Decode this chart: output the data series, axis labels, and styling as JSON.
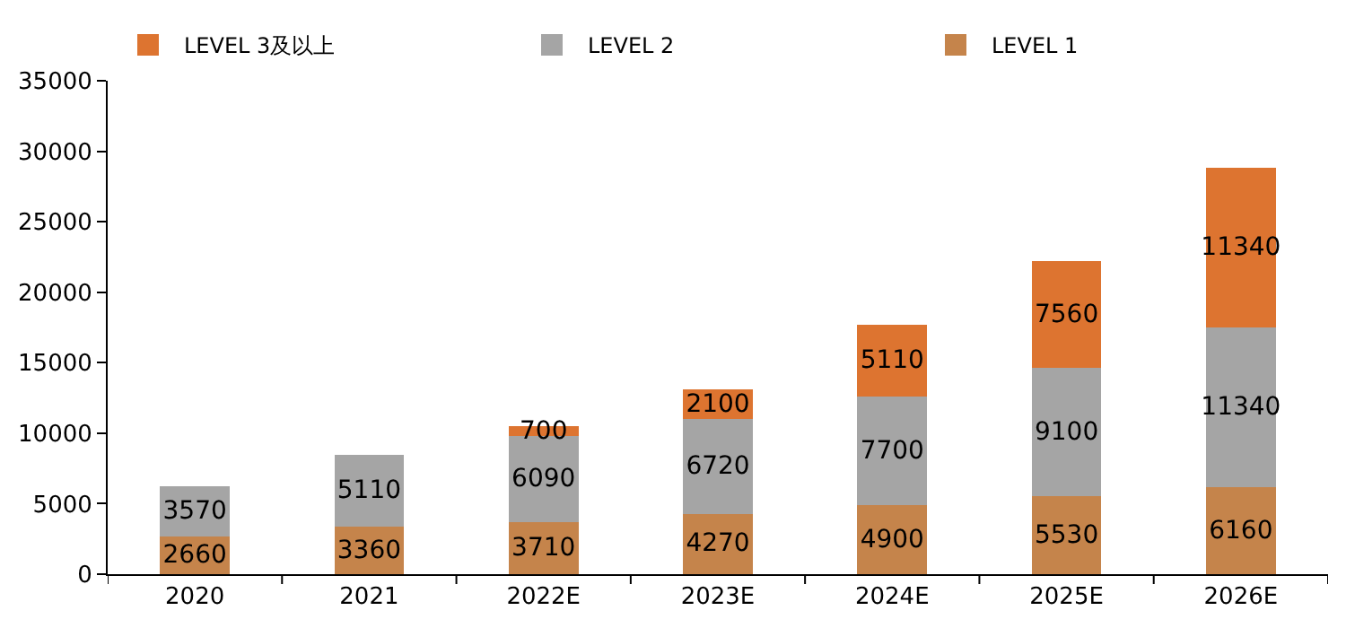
{
  "chart_data": {
    "type": "bar",
    "stacked": true,
    "categories": [
      "2020",
      "2021",
      "2022E",
      "2023E",
      "2024E",
      "2025E",
      "2026E"
    ],
    "series": [
      {
        "name": "LEVEL 1",
        "color": "#c5844b",
        "values": [
          2660,
          3360,
          3710,
          4270,
          4900,
          5530,
          6160
        ]
      },
      {
        "name": "LEVEL 2",
        "color": "#a5a5a5",
        "values": [
          3570,
          5110,
          6090,
          6720,
          7700,
          9100,
          11340
        ]
      },
      {
        "name": "LEVEL 3及以上",
        "color": "#dd7430",
        "values": [
          null,
          null,
          700,
          2100,
          5110,
          7560,
          11340
        ]
      }
    ],
    "ylim": [
      0,
      35000
    ],
    "yticks": [
      0,
      5000,
      10000,
      15000,
      20000,
      25000,
      30000,
      35000
    ],
    "data_labels": true,
    "grid": false,
    "legend": "top"
  }
}
